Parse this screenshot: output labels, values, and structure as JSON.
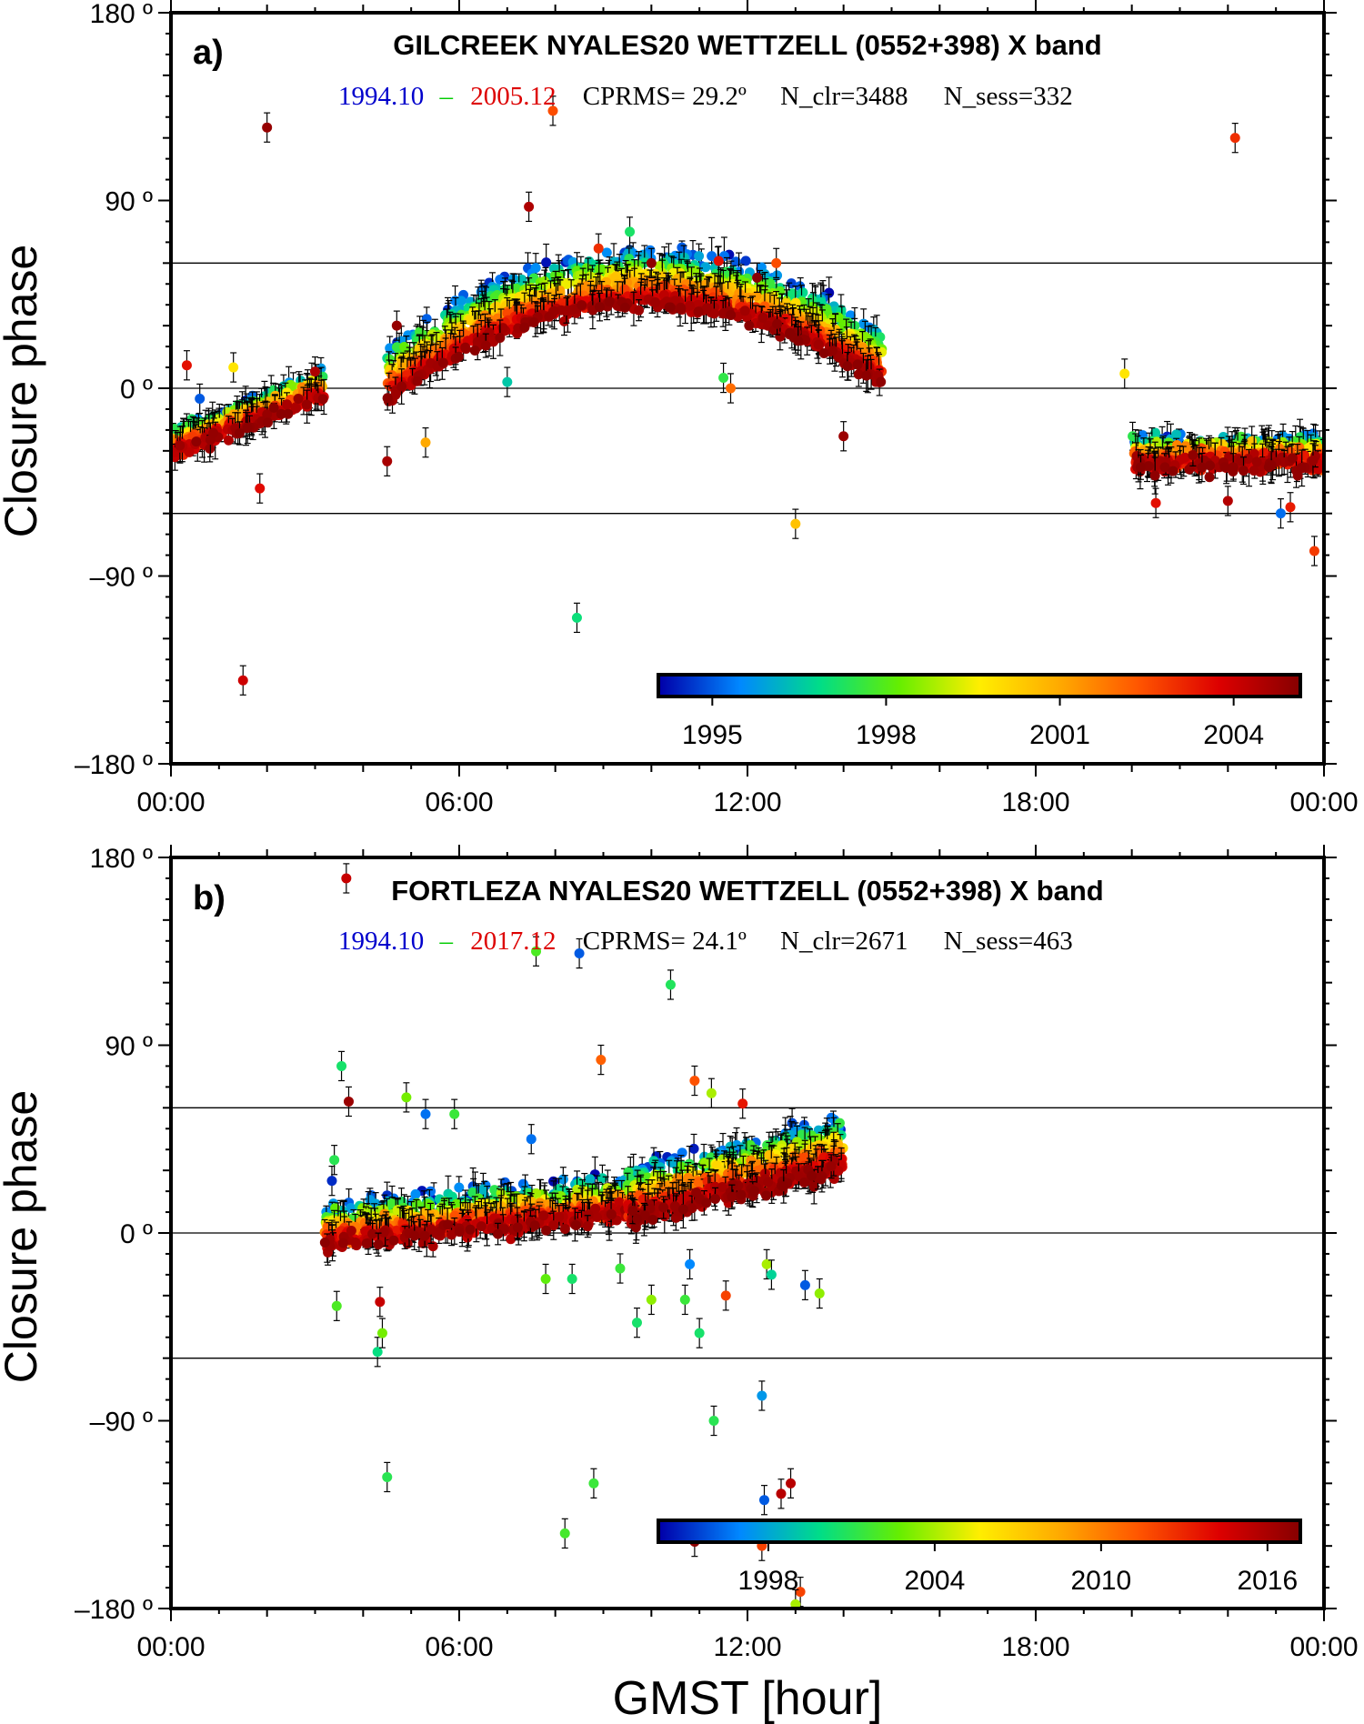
{
  "xlabel": "GMST [hour]",
  "colors": {
    "start": "#0000cc",
    "dash": "#00cc00",
    "end": "#dd0000",
    "text": "#000000",
    "colorbar_stops": [
      "#0000aa",
      "#0088ff",
      "#00dd88",
      "#66ee00",
      "#ffee00",
      "#ffaa00",
      "#ff5500",
      "#dd0000",
      "#880000"
    ]
  },
  "chart_data": [
    {
      "type": "scatter",
      "panel_label": "a)",
      "title": "GILCREEK NYALES20 WETTZELL (0552+398) X band",
      "stats": {
        "start": "1994.10",
        "dash": "–",
        "end": "2005.12",
        "cprms": "CPRMS= 29.2º",
        "nclr": "N_clr=3488",
        "nsess": "N_sess=332"
      },
      "ylabel": "Closure phase",
      "xlim": [
        0,
        24
      ],
      "ylim": [
        -180,
        180
      ],
      "x_ticks": [
        "00:00",
        "06:00",
        "12:00",
        "18:00",
        "00:00"
      ],
      "y_ticks": [
        {
          "value": 180,
          "label": "180 º"
        },
        {
          "value": 90,
          "label": "90 º"
        },
        {
          "value": 0,
          "label": "0 º"
        },
        {
          "value": -90,
          "label": "–90 º"
        },
        {
          "value": -180,
          "label": "–180 º"
        }
      ],
      "reference_lines": [
        60,
        0,
        -60
      ],
      "colorbar": {
        "range": [
          1994.1,
          2005.12
        ],
        "ticks": [
          1995,
          1998,
          2001,
          2004
        ]
      },
      "clusters": [
        {
          "x_from": 0.0,
          "x_to": 3.2,
          "y_from": -28,
          "y_to": 0,
          "spread_low": 14,
          "spread_high": 10,
          "n": 380,
          "year_from": 1994.1,
          "year_to": 2005.12
        },
        {
          "x_from": 4.5,
          "x_to": 14.8,
          "shape": "arc",
          "y_from": 2,
          "y_peak": 48,
          "y_to": 10,
          "spread_low": 28,
          "spread_high": 6,
          "n": 1500,
          "year_from": 1994.1,
          "year_to": 2005.12
        },
        {
          "x_from": 20.0,
          "x_to": 24.0,
          "y_from": -33,
          "y_to": -33,
          "spread_low": 14,
          "spread_high": 20,
          "n": 520,
          "year_from": 1994.1,
          "year_to": 2005.12
        }
      ],
      "outliers": [
        {
          "x": 0.33,
          "y": 11,
          "yr": 2003.5
        },
        {
          "x": 0.6,
          "y": -5,
          "yr": 1995
        },
        {
          "x": 1.3,
          "y": 10,
          "yr": 1999.8
        },
        {
          "x": 1.5,
          "y": -140,
          "yr": 2004.0
        },
        {
          "x": 1.85,
          "y": -48,
          "yr": 2003.6
        },
        {
          "x": 2.0,
          "y": 125,
          "yr": 2004.9
        },
        {
          "x": 3.0,
          "y": 8,
          "yr": 2004.5
        },
        {
          "x": 4.5,
          "y": -35,
          "yr": 2004.6
        },
        {
          "x": 4.7,
          "y": 30,
          "yr": 2004.9
        },
        {
          "x": 5.3,
          "y": -26,
          "yr": 2001.0
        },
        {
          "x": 7.0,
          "y": 3,
          "yr": 1996.5
        },
        {
          "x": 7.45,
          "y": 87,
          "yr": 2004.5
        },
        {
          "x": 7.95,
          "y": 133,
          "yr": 2002.5
        },
        {
          "x": 8.45,
          "y": -110,
          "yr": 1997.0
        },
        {
          "x": 8.9,
          "y": 67,
          "yr": 2003.0
        },
        {
          "x": 9.55,
          "y": 75,
          "yr": 1997.2
        },
        {
          "x": 10.0,
          "y": 60,
          "yr": 2005.0
        },
        {
          "x": 11.4,
          "y": 61,
          "yr": 2003.5
        },
        {
          "x": 11.5,
          "y": 5,
          "yr": 1997.5
        },
        {
          "x": 11.65,
          "y": 0,
          "yr": 2002.0
        },
        {
          "x": 12.2,
          "y": 53,
          "yr": 2005.1
        },
        {
          "x": 12.6,
          "y": 60,
          "yr": 2002.5
        },
        {
          "x": 13.0,
          "y": -65,
          "yr": 2000.5
        },
        {
          "x": 14.0,
          "y": -23,
          "yr": 2004.8
        },
        {
          "x": 19.85,
          "y": 7,
          "yr": 1999.8
        },
        {
          "x": 20.5,
          "y": -55,
          "yr": 2003.5
        },
        {
          "x": 22.0,
          "y": -54,
          "yr": 2004.4
        },
        {
          "x": 22.15,
          "y": 120,
          "yr": 2003.0
        },
        {
          "x": 23.1,
          "y": -60,
          "yr": 1995.2
        },
        {
          "x": 23.3,
          "y": -57,
          "yr": 2003.3
        },
        {
          "x": 23.8,
          "y": -78,
          "yr": 2002.8
        }
      ]
    },
    {
      "type": "scatter",
      "panel_label": "b)",
      "title": "FORTLEZA NYALES20 WETTZELL (0552+398) X band",
      "stats": {
        "start": "1994.10",
        "dash": "–",
        "end": "2017.12",
        "cprms": "CPRMS= 24.1º",
        "nclr": "N_clr=2671",
        "nsess": "N_sess=463"
      },
      "ylabel": "Closure phase",
      "xlim": [
        0,
        24
      ],
      "ylim": [
        -180,
        180
      ],
      "x_ticks": [
        "00:00",
        "06:00",
        "12:00",
        "18:00",
        "00:00"
      ],
      "y_ticks": [
        {
          "value": 180,
          "label": "180 º"
        },
        {
          "value": 90,
          "label": "90 º"
        },
        {
          "value": 0,
          "label": "0 º"
        },
        {
          "value": -90,
          "label": "–90 º"
        },
        {
          "value": -180,
          "label": "–180 º"
        }
      ],
      "reference_lines": [
        60,
        0,
        -60
      ],
      "colorbar": {
        "range": [
          1994.1,
          2017.12
        ],
        "ticks": [
          1998,
          2004,
          2010,
          2016
        ]
      },
      "clusters": [
        {
          "x_from": 3.2,
          "x_to": 9.5,
          "y_from": 0,
          "y_to": 14,
          "spread_low": 20,
          "spread_high": 20,
          "n": 900,
          "year_from": 1994.1,
          "year_to": 2017.12
        },
        {
          "x_from": 9.5,
          "x_to": 14.0,
          "y_from": 14,
          "y_to": 38,
          "spread_low": 26,
          "spread_high": 22,
          "n": 850,
          "year_from": 1994.1,
          "year_to": 2017.12
        }
      ],
      "outliers": [
        {
          "x": 3.35,
          "y": 25,
          "yr": 1995
        },
        {
          "x": 3.4,
          "y": 35,
          "yr": 2001
        },
        {
          "x": 3.45,
          "y": -35,
          "yr": 2002
        },
        {
          "x": 3.55,
          "y": 80,
          "yr": 2000.5
        },
        {
          "x": 3.7,
          "y": 63,
          "yr": 2016.5
        },
        {
          "x": 3.65,
          "y": 170,
          "yr": 2015
        },
        {
          "x": 4.3,
          "y": -57,
          "yr": 2000.0
        },
        {
          "x": 4.35,
          "y": -33,
          "yr": 2015.0
        },
        {
          "x": 4.4,
          "y": -48,
          "yr": 2003.0
        },
        {
          "x": 4.5,
          "y": -117,
          "yr": 2001.0
        },
        {
          "x": 4.9,
          "y": 65,
          "yr": 2003.0
        },
        {
          "x": 5.3,
          "y": 57,
          "yr": 1996.5
        },
        {
          "x": 5.9,
          "y": 57,
          "yr": 2001.5
        },
        {
          "x": 7.5,
          "y": 45,
          "yr": 1996.5
        },
        {
          "x": 7.6,
          "y": 135,
          "yr": 2002.0
        },
        {
          "x": 7.8,
          "y": -22,
          "yr": 2002.5
        },
        {
          "x": 8.2,
          "y": -144,
          "yr": 2001.8
        },
        {
          "x": 8.35,
          "y": -22,
          "yr": 2000.5
        },
        {
          "x": 8.5,
          "y": 134,
          "yr": 1996.0
        },
        {
          "x": 8.8,
          "y": -120,
          "yr": 2001.5
        },
        {
          "x": 8.95,
          "y": 83,
          "yr": 2011.0
        },
        {
          "x": 9.35,
          "y": -17,
          "yr": 2001.5
        },
        {
          "x": 9.7,
          "y": -43,
          "yr": 2000.5
        },
        {
          "x": 10.0,
          "y": -32,
          "yr": 2003.5
        },
        {
          "x": 10.4,
          "y": 119,
          "yr": 2000.8
        },
        {
          "x": 10.7,
          "y": -32,
          "yr": 2001.5
        },
        {
          "x": 10.8,
          "y": -15,
          "yr": 1997.0
        },
        {
          "x": 10.9,
          "y": 73,
          "yr": 2011.5
        },
        {
          "x": 11.0,
          "y": -48,
          "yr": 2000.5
        },
        {
          "x": 11.25,
          "y": 67,
          "yr": 2004.0
        },
        {
          "x": 11.3,
          "y": -90,
          "yr": 2001.0
        },
        {
          "x": 11.55,
          "y": -30,
          "yr": 2012.0
        },
        {
          "x": 11.9,
          "y": 62,
          "yr": 2013.5
        },
        {
          "x": 12.3,
          "y": -78,
          "yr": 1997.5
        },
        {
          "x": 12.35,
          "y": -128,
          "yr": 1996.0
        },
        {
          "x": 12.3,
          "y": -150,
          "yr": 2012.0
        },
        {
          "x": 12.4,
          "y": -15,
          "yr": 2004.0
        },
        {
          "x": 12.5,
          "y": -20,
          "yr": 1999.5
        },
        {
          "x": 12.7,
          "y": -125,
          "yr": 2015.5
        },
        {
          "x": 12.9,
          "y": -120,
          "yr": 2015.5
        },
        {
          "x": 13.1,
          "y": -172,
          "yr": 2012.0
        },
        {
          "x": 13.2,
          "y": -25,
          "yr": 1996.0
        },
        {
          "x": 13.5,
          "y": -29,
          "yr": 2003.5
        },
        {
          "x": 10.9,
          "y": -148,
          "yr": 2017.0
        },
        {
          "x": 13.0,
          "y": -178,
          "yr": 2004.0
        }
      ]
    }
  ]
}
